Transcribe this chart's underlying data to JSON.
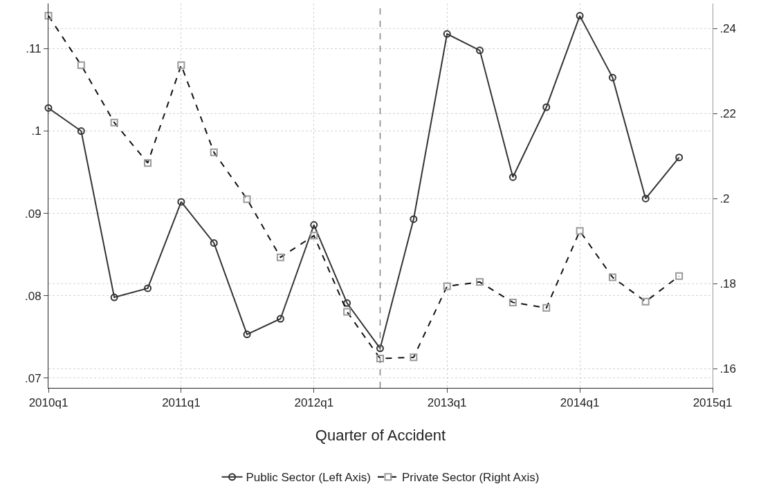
{
  "chart_data": {
    "type": "line",
    "xlabel": "Quarter of Accident",
    "x": [
      "2010-01",
      "2010-04",
      "2010-07",
      "2010-10",
      "2011-01",
      "2011-04",
      "2011-07",
      "2011-10",
      "2012-01",
      "2012-04",
      "2012-07",
      "2012-10",
      "2013-01",
      "2013-04",
      "2013-07",
      "2013-10",
      "2014-01",
      "2014-04",
      "2014-07",
      "2014-10"
    ],
    "series": [
      {
        "name": "Public Sector (Left Axis)",
        "color": "#333333",
        "marker": "circle",
        "line_style": "solid",
        "values": [
          0.1028,
          0.1,
          0.0798,
          0.0809,
          0.0914,
          0.0864,
          0.0753,
          0.0772,
          0.0886,
          0.0791,
          0.0736,
          0.0893,
          0.1118,
          0.1098,
          0.0944,
          0.1029,
          0.114,
          0.1065,
          0.0918,
          0.0968
        ]
      },
      {
        "name": "Private Sector (Right Axis)",
        "color": "#999999",
        "axis": "y2",
        "marker": "square",
        "line_style": "dashed",
        "values": [
          0.243,
          0.2314,
          0.2179,
          0.2084,
          0.2314,
          0.2109,
          0.1999,
          0.1862,
          0.1913,
          0.1734,
          0.1624,
          0.1627,
          0.1794,
          0.1804,
          0.1756,
          0.1743,
          0.1924,
          0.1815,
          0.1758,
          0.1818
        ]
      }
    ],
    "xlim": [
      "2010-01",
      "2015-01"
    ],
    "xticks": [
      {
        "value": "2010-01",
        "label": "2010q1"
      },
      {
        "value": "2011-01",
        "label": "2011q1"
      },
      {
        "value": "2012-01",
        "label": "2012q1"
      },
      {
        "value": "2013-01",
        "label": "2013q1"
      },
      {
        "value": "2014-01",
        "label": "2014q1"
      },
      {
        "value": "2015-01",
        "label": "2015q1"
      }
    ],
    "ylim": [
      0.0688,
      0.1155
    ],
    "yticks": [
      {
        "value": 0.07,
        "label": ".07"
      },
      {
        "value": 0.08,
        "label": ".08"
      },
      {
        "value": 0.09,
        "label": ".09"
      },
      {
        "value": 0.1,
        "label": ".1"
      },
      {
        "value": 0.11,
        "label": ".11"
      }
    ],
    "y2lim": [
      0.1555,
      0.2459
    ],
    "y2ticks": [
      {
        "value": 0.16,
        "label": ".16"
      },
      {
        "value": 0.18,
        "label": ".18"
      },
      {
        "value": 0.2,
        "label": ".2"
      },
      {
        "value": 0.22,
        "label": ".22"
      },
      {
        "value": 0.24,
        "label": ".24"
      }
    ],
    "ref_lines": [
      {
        "axis": "x",
        "value": "2012-07",
        "color": "#808080",
        "line_style": "dashed"
      }
    ],
    "grid": true,
    "legend": "bottom"
  }
}
